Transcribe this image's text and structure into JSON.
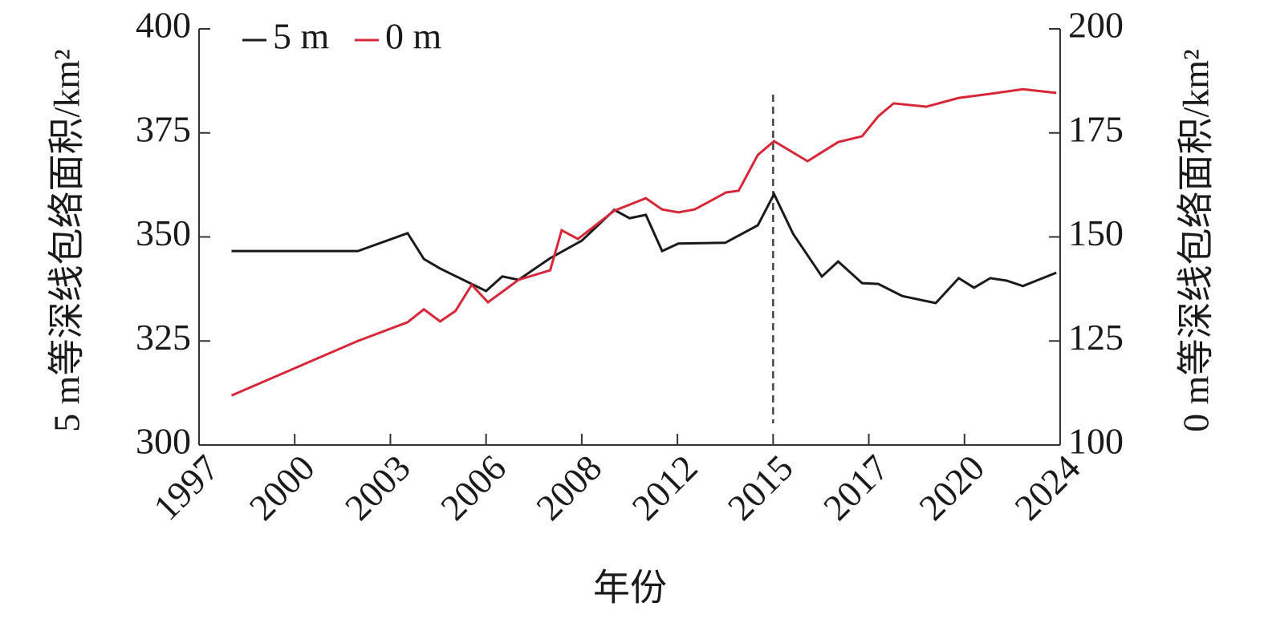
{
  "chart_data": {
    "type": "line",
    "xlabel": "年份",
    "ylabel": "5 m等深线包络面积/km²",
    "y2label": "0 m等深线包络面积/km²",
    "xlim": [
      0,
      9
    ],
    "xticks": [
      {
        "value": 0,
        "label": "1997"
      },
      {
        "value": 1,
        "label": "2000"
      },
      {
        "value": 2,
        "label": "2003"
      },
      {
        "value": 3,
        "label": "2006"
      },
      {
        "value": 4,
        "label": "2008"
      },
      {
        "value": 5,
        "label": "2012"
      },
      {
        "value": 6,
        "label": "2015"
      },
      {
        "value": 7,
        "label": "2017"
      },
      {
        "value": 8,
        "label": "2020"
      },
      {
        "value": 9,
        "label": "2024"
      }
    ],
    "ylim": [
      300,
      400
    ],
    "yticks": [
      300,
      325,
      350,
      375,
      400
    ],
    "y2lim": [
      100,
      200
    ],
    "y2ticks": [
      100,
      125,
      150,
      175,
      200
    ],
    "legend": "upper left",
    "series": [
      {
        "name": "5 m",
        "color": "#1a1a1a",
        "axis": "y",
        "x": [
          0.34,
          1.66,
          2.18,
          2.35,
          2.52,
          3.0,
          3.17,
          3.34,
          3.67,
          4.0,
          4.34,
          4.5,
          4.67,
          4.84,
          5.01,
          5.5,
          5.84,
          6.01,
          6.21,
          6.51,
          6.68,
          6.93,
          7.1,
          7.35,
          7.7,
          7.94,
          8.1,
          8.27,
          8.44,
          8.61,
          8.96
        ],
        "values": [
          346.6,
          346.6,
          350.9,
          344.7,
          342.4,
          337.0,
          340.5,
          339.7,
          344.9,
          349.1,
          356.5,
          354.5,
          355.3,
          346.6,
          348.4,
          348.6,
          352.8,
          360.3,
          350.7,
          340.5,
          344.1,
          338.9,
          338.7,
          335.8,
          334.1,
          340.1,
          337.8,
          340.1,
          339.5,
          338.2,
          341.4
        ]
      },
      {
        "name": "0 m",
        "color": "#d62839",
        "axis": "y2",
        "x": [
          0.34,
          1.66,
          2.18,
          2.35,
          2.52,
          2.68,
          2.85,
          3.02,
          3.34,
          3.67,
          3.79,
          3.96,
          4.34,
          4.67,
          4.84,
          5.01,
          5.18,
          5.51,
          5.64,
          5.84,
          6.01,
          6.36,
          6.68,
          6.93,
          7.1,
          7.26,
          7.6,
          7.94,
          8.27,
          8.61,
          8.96
        ],
        "values": [
          111.9,
          125.0,
          129.5,
          132.6,
          129.7,
          132.2,
          138.5,
          134.3,
          139.7,
          142.0,
          151.6,
          149.5,
          156.3,
          159.3,
          156.6,
          155.9,
          156.6,
          160.7,
          161.1,
          169.7,
          173.0,
          168.2,
          172.8,
          174.2,
          179.0,
          182.1,
          181.3,
          183.4,
          184.4,
          185.5,
          184.6
        ]
      }
    ]
  }
}
